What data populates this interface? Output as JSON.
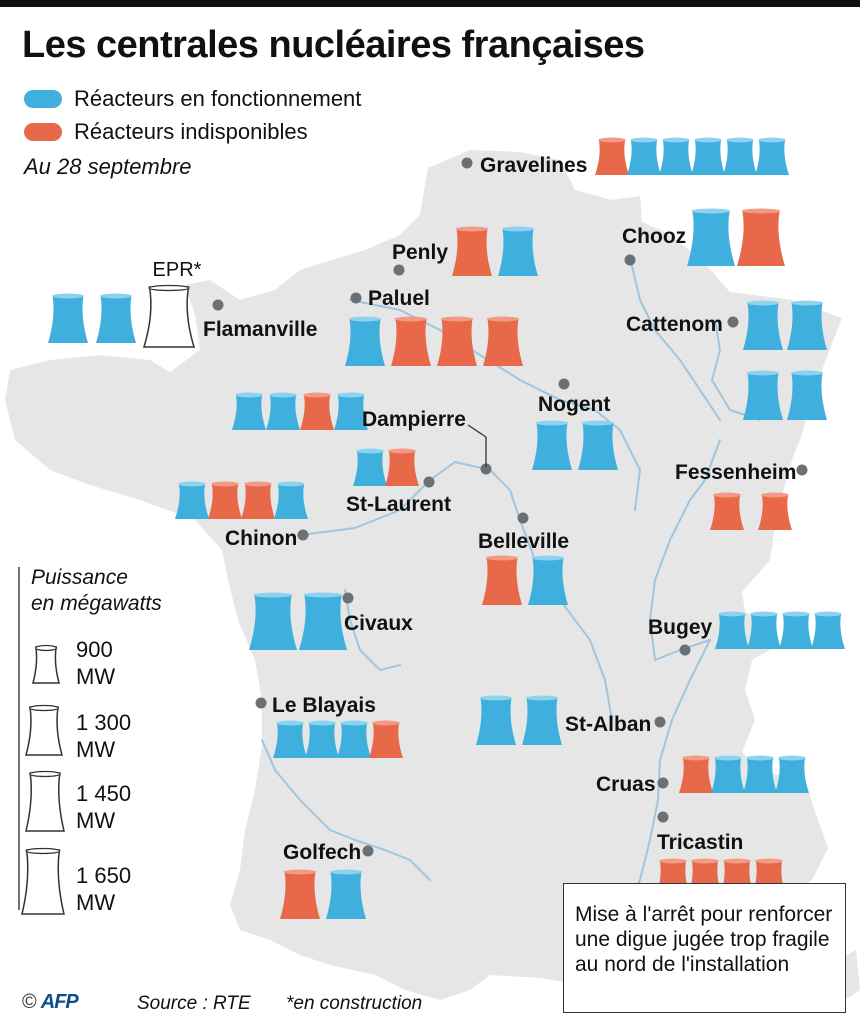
{
  "title": "Les centrales nucléaires françaises",
  "legend": {
    "operating": "Réacteurs en fonctionnement",
    "unavailable": "Réacteurs indisponibles"
  },
  "date": "Au 28 septembre",
  "colors": {
    "operating": "#3fb0dd",
    "operating_dark": "#1a8fc2",
    "unavailable": "#e8684a",
    "map_fill": "#e6e6e6",
    "river": "#9fc6de"
  },
  "epr_label": "EPR*",
  "power_legend": {
    "title_line1": "Puissance",
    "title_line2": "en mégawatts",
    "sizes": [
      {
        "value": "900",
        "unit": "MW"
      },
      {
        "value": "1 300",
        "unit": "MW"
      },
      {
        "value": "1 450",
        "unit": "MW"
      },
      {
        "value": "1 650",
        "unit": "MW"
      }
    ]
  },
  "plants": [
    {
      "name": "Gravelines",
      "reactors": [
        "unavailable",
        "operating",
        "operating",
        "operating",
        "operating",
        "operating"
      ],
      "capacity_mw": 900
    },
    {
      "name": "Penly",
      "reactors": [
        "unavailable",
        "operating"
      ],
      "capacity_mw": 1300
    },
    {
      "name": "Paluel",
      "reactors": [
        "operating",
        "unavailable",
        "unavailable",
        "unavailable"
      ],
      "capacity_mw": 1300
    },
    {
      "name": "Flamanville",
      "reactors": [
        "operating",
        "operating",
        "construction"
      ],
      "capacity_mw": 1300
    },
    {
      "name": "Chooz",
      "reactors": [
        "operating",
        "unavailable"
      ],
      "capacity_mw": 1450
    },
    {
      "name": "Cattenom",
      "reactors": [
        "operating",
        "operating",
        "operating",
        "operating"
      ],
      "capacity_mw": 1300
    },
    {
      "name": "Nogent",
      "reactors": [
        "operating",
        "operating"
      ],
      "capacity_mw": 1300
    },
    {
      "name": "Dampierre",
      "reactors": [
        "operating",
        "operating",
        "unavailable",
        "operating"
      ],
      "capacity_mw": 900
    },
    {
      "name": "St-Laurent",
      "reactors": [
        "operating",
        "unavailable"
      ],
      "capacity_mw": 900
    },
    {
      "name": "Chinon",
      "reactors": [
        "operating",
        "unavailable",
        "unavailable",
        "operating"
      ],
      "capacity_mw": 900
    },
    {
      "name": "Belleville",
      "reactors": [
        "unavailable",
        "operating"
      ],
      "capacity_mw": 1300
    },
    {
      "name": "Fessenheim",
      "reactors": [
        "unavailable",
        "unavailable"
      ],
      "capacity_mw": 900
    },
    {
      "name": "Civaux",
      "reactors": [
        "operating",
        "operating"
      ],
      "capacity_mw": 1450
    },
    {
      "name": "Bugey",
      "reactors": [
        "operating",
        "operating",
        "operating",
        "operating"
      ],
      "capacity_mw": 900
    },
    {
      "name": "Le Blayais",
      "reactors": [
        "operating",
        "operating",
        "operating",
        "unavailable"
      ],
      "capacity_mw": 900
    },
    {
      "name": "St-Alban",
      "reactors": [
        "operating",
        "operating"
      ],
      "capacity_mw": 1300
    },
    {
      "name": "Cruas",
      "reactors": [
        "unavailable",
        "operating",
        "operating",
        "operating"
      ],
      "capacity_mw": 900
    },
    {
      "name": "Tricastin",
      "reactors": [
        "unavailable",
        "unavailable",
        "unavailable",
        "unavailable"
      ],
      "capacity_mw": 900
    },
    {
      "name": "Golfech",
      "reactors": [
        "unavailable",
        "operating"
      ],
      "capacity_mw": 1300
    }
  ],
  "note": "Mise à l'arrêt pour renforcer une digue jugée trop fragile au nord de l'installation",
  "footer": {
    "copyright": "©",
    "agency": "AFP",
    "source": "Source : RTE",
    "construction_note": "*en construction"
  }
}
